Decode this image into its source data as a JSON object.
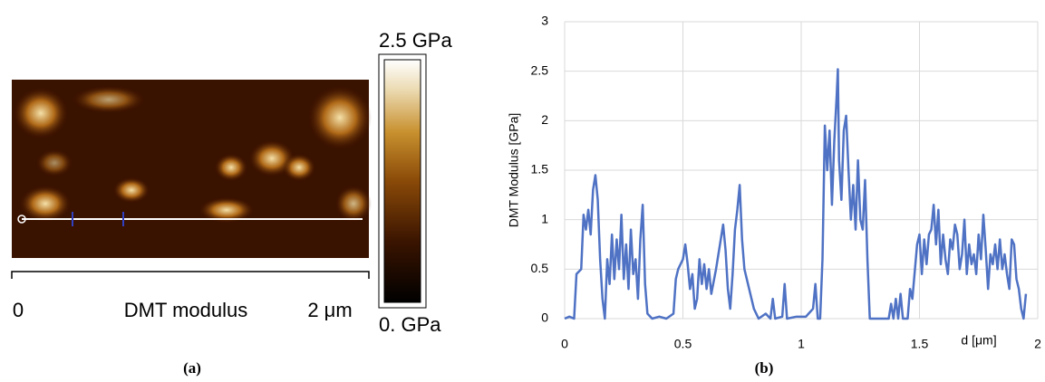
{
  "image_panel": {
    "colorbar_max": "2.5 GPa",
    "colorbar_min": "0. GPa",
    "scale_start": "0",
    "scale_title": "DMT modulus",
    "scale_end": "2 μm",
    "caption": "(a)"
  },
  "chart_data": {
    "type": "line",
    "caption": "(b)",
    "x_label": "d [μm]",
    "y_label": "DMT Modulus [GPa]",
    "xlim": [
      0,
      2
    ],
    "xticks": [
      0,
      0.5,
      1,
      1.5,
      2
    ],
    "ylim": [
      0,
      3
    ],
    "yticks": [
      0,
      0.5,
      1,
      1.5,
      2,
      2.5,
      3
    ],
    "grid": true,
    "x": [
      0,
      0.02,
      0.04,
      0.05,
      0.07,
      0.08,
      0.09,
      0.1,
      0.11,
      0.12,
      0.13,
      0.14,
      0.15,
      0.16,
      0.17,
      0.18,
      0.19,
      0.2,
      0.21,
      0.22,
      0.23,
      0.24,
      0.25,
      0.26,
      0.27,
      0.28,
      0.29,
      0.3,
      0.31,
      0.32,
      0.33,
      0.34,
      0.35,
      0.37,
      0.4,
      0.43,
      0.46,
      0.47,
      0.48,
      0.5,
      0.51,
      0.52,
      0.53,
      0.54,
      0.55,
      0.56,
      0.57,
      0.58,
      0.59,
      0.6,
      0.61,
      0.62,
      0.64,
      0.66,
      0.67,
      0.68,
      0.69,
      0.7,
      0.71,
      0.72,
      0.73,
      0.74,
      0.75,
      0.76,
      0.78,
      0.8,
      0.82,
      0.85,
      0.87,
      0.88,
      0.89,
      0.92,
      0.93,
      0.94,
      0.98,
      1.02,
      1.05,
      1.06,
      1.07,
      1.08,
      1.09,
      1.1,
      1.11,
      1.12,
      1.13,
      1.14,
      1.15,
      1.155,
      1.16,
      1.17,
      1.18,
      1.19,
      1.2,
      1.21,
      1.22,
      1.23,
      1.24,
      1.25,
      1.26,
      1.27,
      1.28,
      1.29,
      1.32,
      1.37,
      1.38,
      1.39,
      1.4,
      1.41,
      1.42,
      1.43,
      1.45,
      1.46,
      1.47,
      1.49,
      1.5,
      1.51,
      1.52,
      1.53,
      1.54,
      1.55,
      1.56,
      1.57,
      1.58,
      1.59,
      1.6,
      1.61,
      1.62,
      1.63,
      1.64,
      1.65,
      1.66,
      1.67,
      1.68,
      1.69,
      1.7,
      1.71,
      1.72,
      1.73,
      1.74,
      1.75,
      1.76,
      1.77,
      1.78,
      1.79,
      1.8,
      1.81,
      1.82,
      1.83,
      1.84,
      1.85,
      1.86,
      1.87,
      1.88,
      1.89,
      1.9,
      1.91,
      1.92,
      1.93,
      1.94,
      1.95
    ],
    "series": [
      {
        "color": "#4f72c4",
        "values": [
          0,
          0.02,
          0,
          0.45,
          0.5,
          1.05,
          0.9,
          1.1,
          0.85,
          1.3,
          1.45,
          1.2,
          0.6,
          0.2,
          0,
          0.6,
          0.35,
          0.85,
          0.4,
          0.8,
          0.5,
          1.05,
          0.4,
          0.75,
          0.3,
          0.9,
          0.45,
          0.6,
          0.2,
          0.8,
          1.15,
          0.35,
          0.05,
          0,
          0.02,
          0,
          0.05,
          0.4,
          0.5,
          0.6,
          0.75,
          0.55,
          0.3,
          0.45,
          0.1,
          0.2,
          0.6,
          0.35,
          0.55,
          0.3,
          0.5,
          0.25,
          0.5,
          0.8,
          0.95,
          0.7,
          0.3,
          0.1,
          0.45,
          0.9,
          1.1,
          1.35,
          0.8,
          0.5,
          0.3,
          0.1,
          0,
          0.05,
          0,
          0.2,
          0,
          0.02,
          0.35,
          0,
          0.02,
          0.02,
          0.1,
          0.35,
          0,
          0,
          0.6,
          1.95,
          1.5,
          1.9,
          1.15,
          1.8,
          2.25,
          2.52,
          1.6,
          1.2,
          1.9,
          2.05,
          1.5,
          1,
          1.35,
          0.9,
          1.6,
          1,
          0.9,
          1.4,
          0.6,
          0,
          0,
          0,
          0.15,
          0,
          0.2,
          0,
          0.25,
          0,
          0,
          0.3,
          0.2,
          0.75,
          0.85,
          0.45,
          0.8,
          0.55,
          0.85,
          0.9,
          1.15,
          0.75,
          1.1,
          0.55,
          0.85,
          0.6,
          0.45,
          0.8,
          0.7,
          0.95,
          0.85,
          0.5,
          0.65,
          1,
          0.45,
          0.75,
          0.55,
          0.65,
          0.45,
          0.85,
          0.6,
          1.05,
          0.7,
          0.3,
          0.65,
          0.55,
          0.75,
          0.5,
          0.8,
          0.5,
          0.65,
          0.45,
          0.3,
          0.8,
          0.75,
          0.4,
          0.3,
          0.1,
          0,
          0.25
        ]
      }
    ]
  }
}
